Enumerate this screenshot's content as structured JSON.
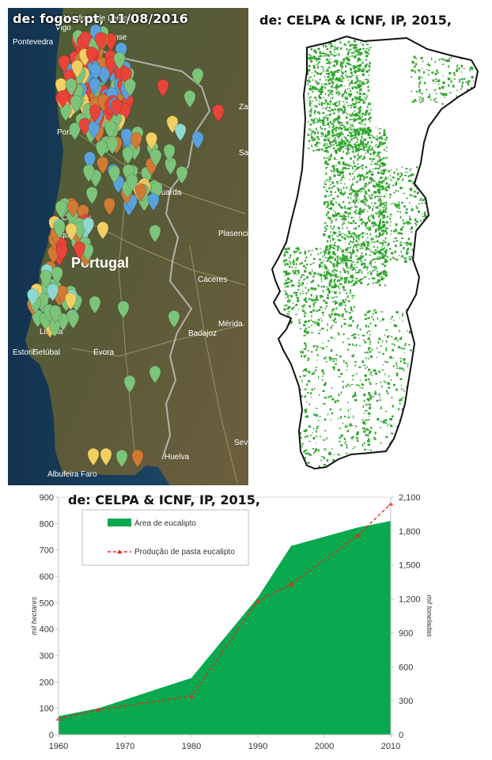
{
  "satellite_map": {
    "source_caption": "de: fogos.pt, 11/08/2016",
    "place_labels": [
      "Monforte de Lemos",
      "Vigo",
      "Ourense",
      "Pontevedra",
      "Porto",
      "Guarda",
      "Coimbra",
      "Figueira",
      "Portugal",
      "Plasencia",
      "Cáceres",
      "Mérida",
      "Badajoz",
      "Estoril",
      "Setúbal",
      "Évora",
      "Sevilla",
      "Huelva",
      "Albufeira",
      "Faro",
      "Zamora",
      "Salamanca",
      "Lisboa"
    ],
    "marker_colors": {
      "green": "#7cc47a",
      "red": "#e8443a",
      "orange": "#d07a34",
      "blue": "#5aa2dc",
      "yellow": "#f2cf62",
      "teal": "#8fd8cf"
    }
  },
  "distribution_map": {
    "source_caption": "de: CELPA & ICNF, IP, 2015,",
    "colors": {
      "eucalyptus": "#2fa52b",
      "border": "#111111"
    }
  },
  "chart_data": {
    "type": "area",
    "source_caption": "de: CELPA & ICNF, IP, 2015,",
    "x": [
      1960,
      1966,
      1980,
      1990,
      1995,
      2005,
      2010
    ],
    "series": [
      {
        "name": "Área de eucalipto",
        "type": "area",
        "axis": "left",
        "color": "#0aa84f",
        "x": [
          1960,
          1966,
          1980,
          1990,
          1995,
          2005,
          2010
        ],
        "values": [
          70,
          100,
          215,
          520,
          715,
          785,
          810
        ]
      },
      {
        "name": "Produção de pasta eucalipto",
        "type": "line",
        "axis": "right",
        "color": "#e8291c",
        "x": [
          1960,
          1966,
          1980,
          1990,
          1995,
          2005,
          2010
        ],
        "values": [
          140,
          220,
          340,
          1180,
          1330,
          1760,
          2040
        ]
      }
    ],
    "ylabel": "mil hectares",
    "y2label": "mil toneladas",
    "xlim": [
      1960,
      2010
    ],
    "ylim": [
      0,
      900
    ],
    "y2lim": [
      0,
      2100
    ],
    "x_ticks": [
      "1960",
      "1970",
      "1980",
      "1990",
      "2000",
      "2010"
    ],
    "y_ticks": [
      "0",
      "100",
      "200",
      "300",
      "400",
      "500",
      "600",
      "700",
      "800",
      "900"
    ],
    "y2_ticks": [
      "0",
      "300",
      "600",
      "900",
      "1,200",
      "1,500",
      "1,800",
      "2,100"
    ],
    "grid": false,
    "legend_placement": "top-left"
  }
}
